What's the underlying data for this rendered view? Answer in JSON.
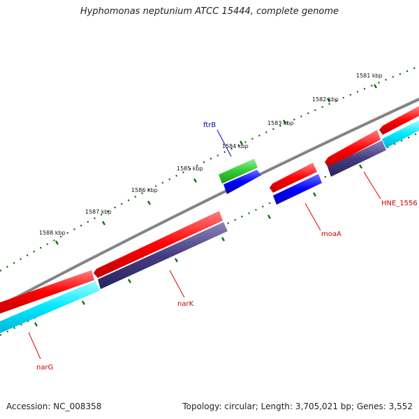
{
  "title": "Hyphomonas neptunium ATCC 15444, complete genome",
  "footer": {
    "accession": "Accession: NC_008358",
    "topology": "Topology: circular; Length: 3,705,021 bp; Genes: 3,552"
  },
  "tick_labels": [
    "1581 kbp",
    "1582 kbp",
    "1583 kbp",
    "1584 kbp",
    "1585 kbp",
    "1586 kbp",
    "1587 kbp",
    "1588 kbp"
  ],
  "genes": [
    {
      "name": "ftrB",
      "color": "#0000cc"
    },
    {
      "name": "moaA",
      "color": "#cc0000"
    },
    {
      "name": "HNE_1556",
      "color": "#cc0000"
    },
    {
      "name": "narK",
      "color": "#cc0000"
    },
    {
      "name": "narG",
      "color": "#cc0000"
    }
  ],
  "colors": {
    "backbone": "#808080",
    "forward_cds": "#ff0000",
    "reverse_cds": "#443c80",
    "reverse_cds_alt": "#00e8ff",
    "small_forward": "#0000ff",
    "rna_green": "#33cc33",
    "tick": "#006600"
  }
}
